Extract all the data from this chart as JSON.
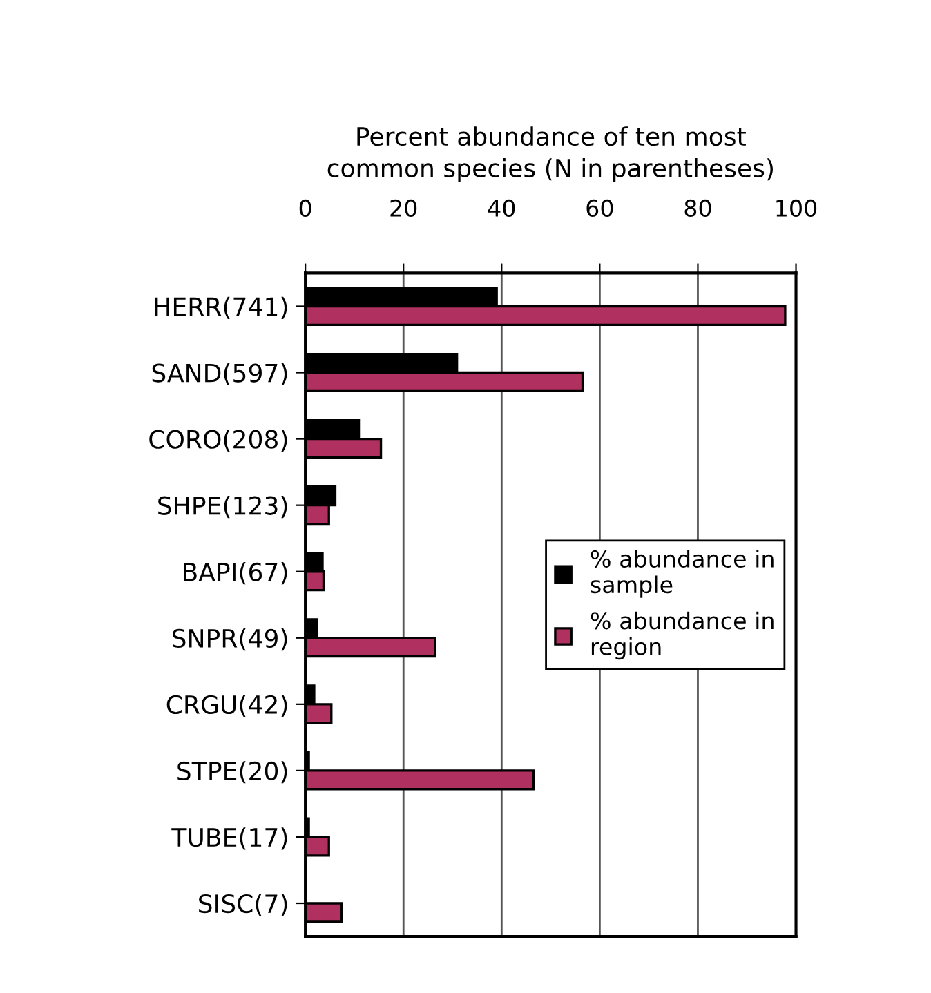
{
  "chart_data": {
    "type": "bar",
    "orientation": "horizontal",
    "title": "Percent abundance of ten most\ncommon species (N in parentheses)",
    "categories": [
      "HERR(741)",
      "SAND(597)",
      "CORO(208)",
      "SHPE(123)",
      "BAPI(67)",
      "SNPR(49)",
      "CRGU(42)",
      "STPE(20)",
      "TUBE(17)",
      "SISC(7)"
    ],
    "series": [
      {
        "name": "% abundance in\nsample",
        "color": "#000000",
        "values": [
          39.0,
          30.9,
          10.9,
          6.1,
          3.5,
          2.4,
          1.8,
          0.7,
          0.7,
          null
        ]
      },
      {
        "name": "% abundance in\nregion",
        "color": "#b03060",
        "values": [
          97.8,
          56.5,
          15.4,
          4.8,
          3.7,
          26.4,
          5.3,
          46.5,
          4.8,
          7.4
        ]
      }
    ],
    "xlim": [
      0,
      100
    ],
    "xticks": [
      0,
      20,
      40,
      60,
      80,
      100
    ],
    "grid": "x",
    "legend": "center right"
  }
}
